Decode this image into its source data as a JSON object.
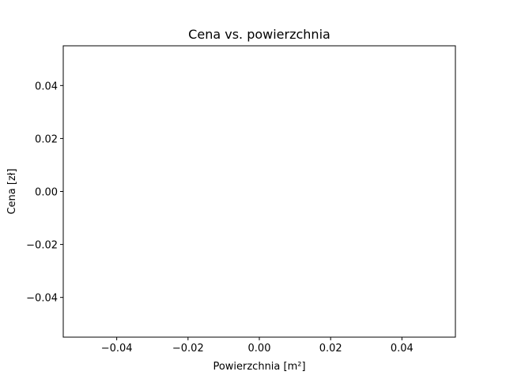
{
  "chart_data": {
    "type": "scatter",
    "title": "Cena vs. powierzchnia",
    "xlabel": "Powierzchnia [m²]",
    "ylabel": "Cena [zł]",
    "xlim": [
      -0.055,
      0.055
    ],
    "ylim": [
      -0.055,
      0.055
    ],
    "x_ticks": [
      {
        "value": -0.04,
        "label": "−0.04"
      },
      {
        "value": -0.02,
        "label": "−0.02"
      },
      {
        "value": 0.0,
        "label": "0.00"
      },
      {
        "value": 0.02,
        "label": "0.02"
      },
      {
        "value": 0.04,
        "label": "0.04"
      }
    ],
    "y_ticks": [
      {
        "value": -0.04,
        "label": "−0.04"
      },
      {
        "value": -0.02,
        "label": "−0.02"
      },
      {
        "value": 0.0,
        "label": "0.00"
      },
      {
        "value": 0.02,
        "label": "0.02"
      },
      {
        "value": 0.04,
        "label": "0.04"
      }
    ],
    "series": [
      {
        "x": [],
        "y": []
      }
    ],
    "grid": false,
    "legend": "none"
  }
}
